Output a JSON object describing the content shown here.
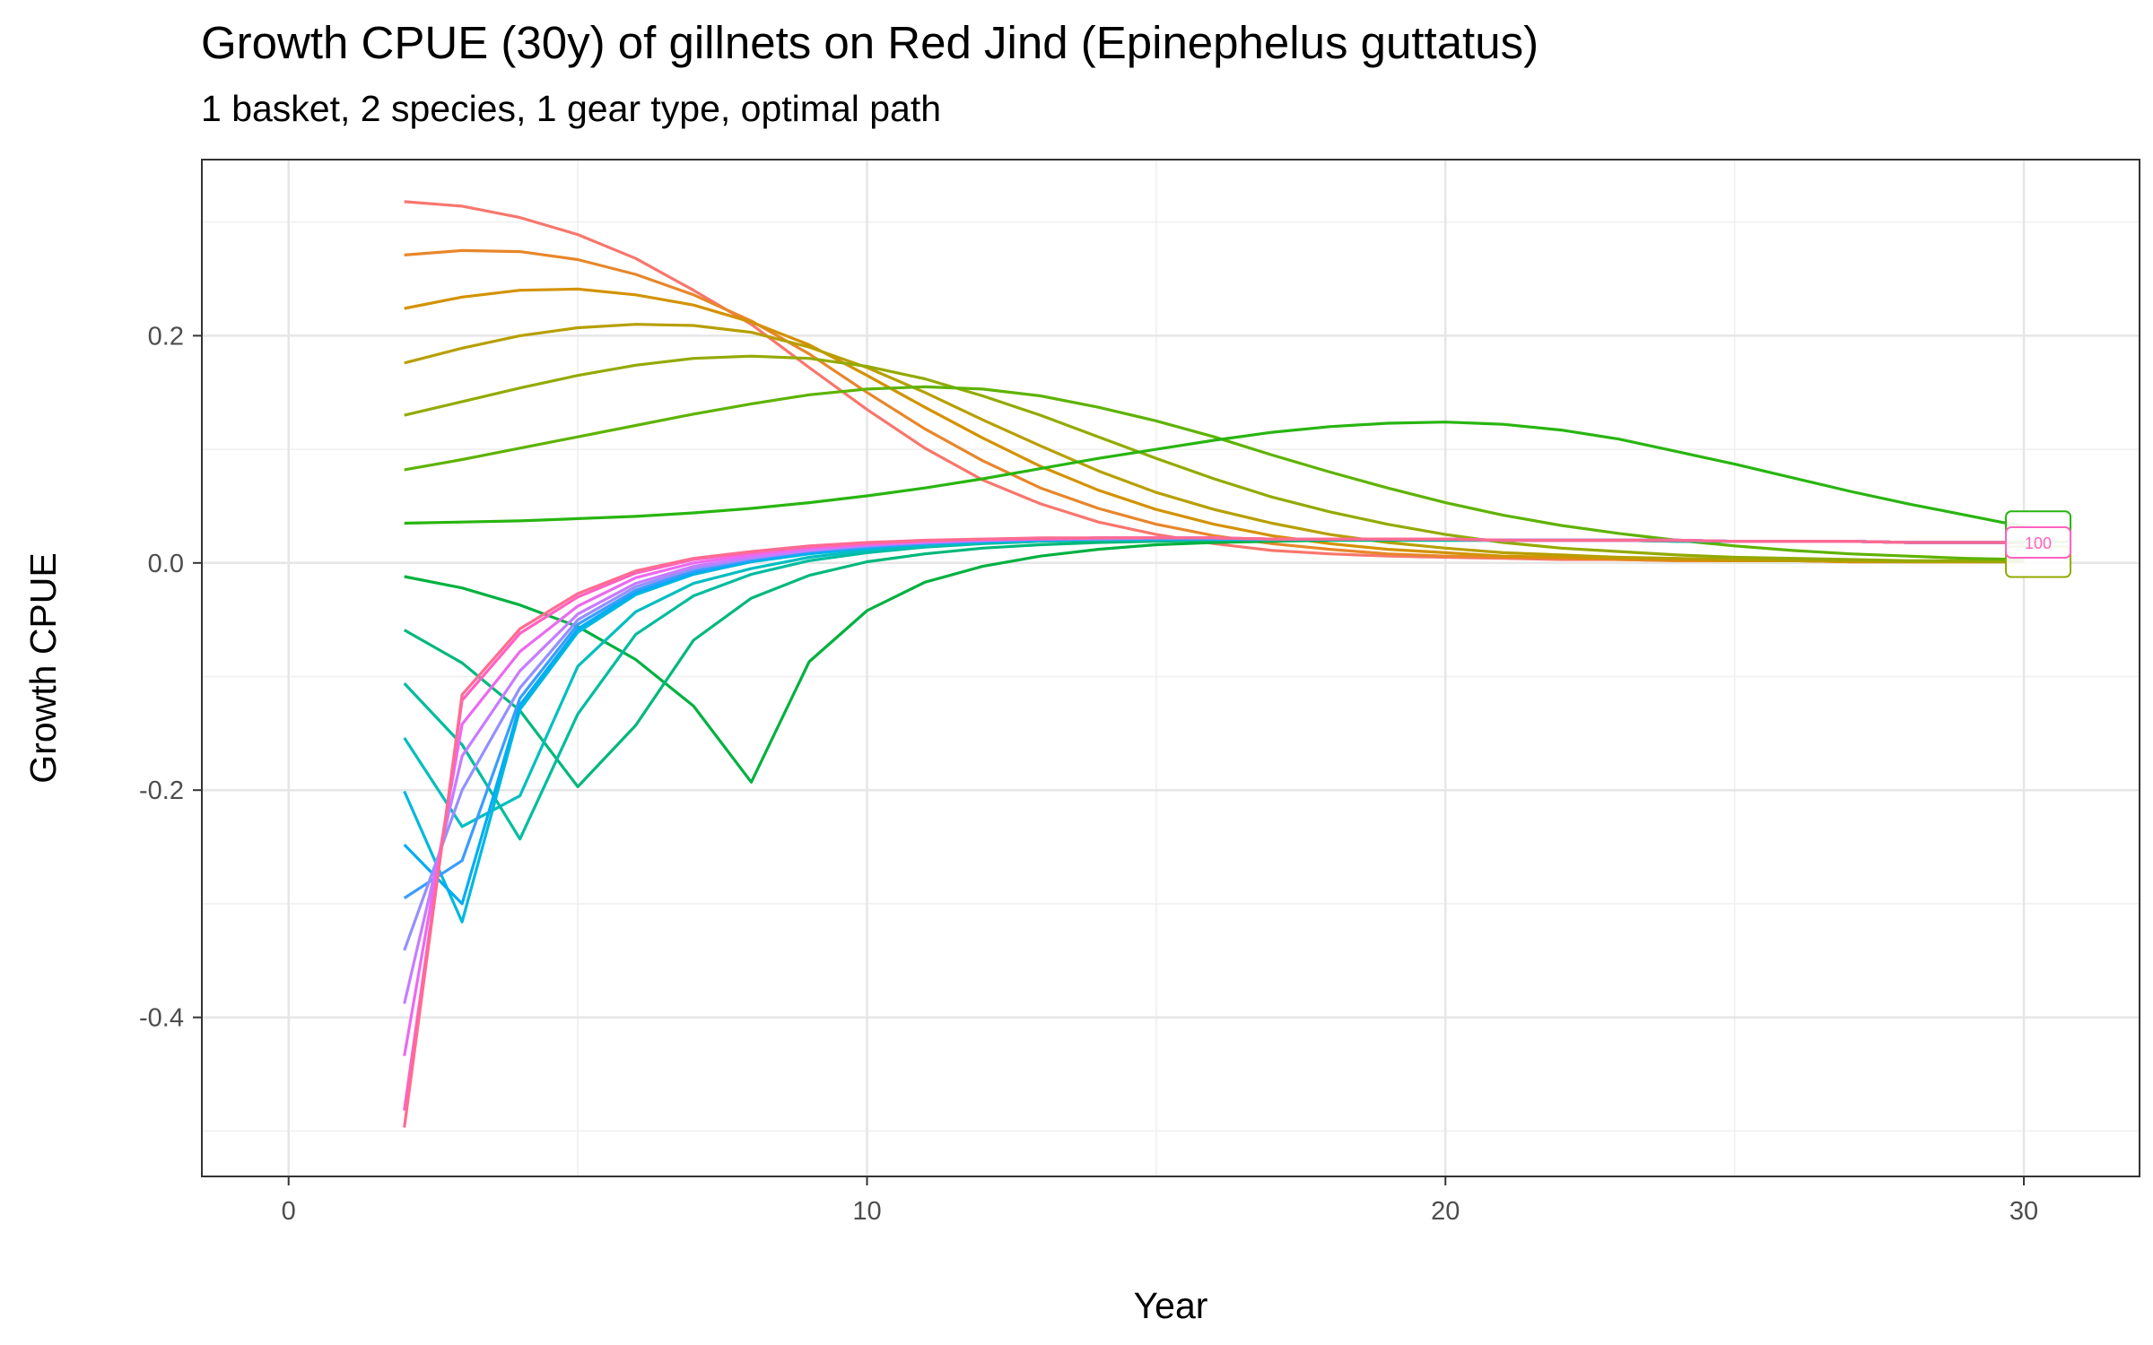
{
  "chart_data": {
    "type": "line",
    "title": "Growth CPUE (30y) of gillnets on Red Jind (Epinephelus guttatus)",
    "subtitle": "1 basket, 2 species, 1 gear type, optimal path",
    "xlabel": "Year",
    "ylabel": "Growth CPUE",
    "xlim": [
      -1.5,
      32
    ],
    "ylim": [
      -0.54,
      0.355
    ],
    "x_ticks": [
      0,
      10,
      20,
      30
    ],
    "x_tick_labels": [
      "0",
      "10",
      "20",
      "30"
    ],
    "y_ticks": [
      -0.4,
      -0.2,
      0.0,
      0.2
    ],
    "y_tick_labels": [
      "-0.4",
      "-0.2",
      "0.0",
      "0.2"
    ],
    "grid": true,
    "legend": "none",
    "x": [
      2,
      3,
      4,
      5,
      6,
      7,
      8,
      9,
      10,
      11,
      12,
      13,
      14,
      15,
      16,
      17,
      18,
      19,
      20,
      21,
      22,
      23,
      24,
      25,
      26,
      27,
      28,
      29,
      30
    ],
    "series": [
      {
        "color": "#F8766D",
        "values": [
          0.318,
          0.314,
          0.304,
          0.289,
          0.268,
          0.24,
          0.21,
          0.172,
          0.135,
          0.101,
          0.073,
          0.052,
          0.036,
          0.025,
          0.017,
          0.011,
          0.008,
          0.006,
          0.005,
          0.004,
          0.003,
          0.003,
          0.002,
          0.002,
          0.002,
          0.001,
          0.001,
          0.001,
          0.001
        ]
      },
      {
        "color": "#E8862A",
        "values": [
          0.271,
          0.275,
          0.274,
          0.267,
          0.254,
          0.236,
          0.213,
          0.184,
          0.15,
          0.118,
          0.09,
          0.066,
          0.048,
          0.034,
          0.024,
          0.017,
          0.012,
          0.008,
          0.006,
          0.005,
          0.004,
          0.003,
          0.002,
          0.002,
          0.002,
          0.001,
          0.001,
          0.001,
          0.001
        ]
      },
      {
        "color": "#D39200",
        "values": [
          0.224,
          0.234,
          0.24,
          0.241,
          0.236,
          0.227,
          0.212,
          0.192,
          0.165,
          0.137,
          0.11,
          0.085,
          0.064,
          0.047,
          0.034,
          0.024,
          0.017,
          0.012,
          0.009,
          0.006,
          0.005,
          0.004,
          0.003,
          0.002,
          0.002,
          0.001,
          0.001,
          0.001,
          0.001
        ]
      },
      {
        "color": "#B79F00",
        "values": [
          0.176,
          0.189,
          0.2,
          0.207,
          0.21,
          0.209,
          0.203,
          0.19,
          0.172,
          0.15,
          0.126,
          0.103,
          0.081,
          0.062,
          0.047,
          0.035,
          0.025,
          0.018,
          0.013,
          0.009,
          0.007,
          0.005,
          0.004,
          0.003,
          0.002,
          0.002,
          0.001,
          0.001,
          0.001
        ]
      },
      {
        "color": "#93AA00",
        "values": [
          0.13,
          0.142,
          0.154,
          0.165,
          0.174,
          0.18,
          0.182,
          0.18,
          0.173,
          0.162,
          0.147,
          0.13,
          0.111,
          0.092,
          0.074,
          0.058,
          0.045,
          0.034,
          0.025,
          0.018,
          0.013,
          0.01,
          0.007,
          0.005,
          0.004,
          0.003,
          0.002,
          0.002,
          0.001
        ]
      },
      {
        "color": "#5EB300",
        "values": [
          0.082,
          0.091,
          0.101,
          0.111,
          0.121,
          0.131,
          0.14,
          0.148,
          0.153,
          0.155,
          0.153,
          0.147,
          0.137,
          0.125,
          0.111,
          0.095,
          0.08,
          0.066,
          0.053,
          0.042,
          0.033,
          0.026,
          0.02,
          0.015,
          0.011,
          0.008,
          0.006,
          0.004,
          0.003
        ]
      },
      {
        "color": "#28B510",
        "values": [
          0.035,
          0.036,
          0.037,
          0.039,
          0.041,
          0.044,
          0.048,
          0.053,
          0.059,
          0.066,
          0.074,
          0.083,
          0.092,
          0.1,
          0.108,
          0.115,
          0.12,
          0.123,
          0.124,
          0.122,
          0.117,
          0.109,
          0.098,
          0.087,
          0.075,
          0.063,
          0.052,
          0.042,
          0.032
        ]
      },
      {
        "color": "#00B140",
        "values": [
          -0.012,
          -0.022,
          -0.037,
          -0.056,
          -0.085,
          -0.126,
          -0.193,
          -0.087,
          -0.042,
          -0.017,
          -0.003,
          0.006,
          0.012,
          0.016,
          0.018,
          0.019,
          0.02,
          0.02,
          0.02,
          0.02,
          0.02,
          0.02,
          0.019,
          0.019,
          0.019,
          0.019,
          0.018,
          0.018,
          0.018
        ]
      },
      {
        "color": "#00B87A",
        "values": [
          -0.059,
          -0.088,
          -0.13,
          -0.197,
          -0.143,
          -0.068,
          -0.031,
          -0.011,
          0.001,
          0.008,
          0.013,
          0.016,
          0.018,
          0.019,
          0.02,
          0.02,
          0.02,
          0.02,
          0.02,
          0.02,
          0.02,
          0.02,
          0.019,
          0.019,
          0.019,
          0.019,
          0.018,
          0.018,
          0.018
        ]
      },
      {
        "color": "#00BC9E",
        "values": [
          -0.106,
          -0.16,
          -0.243,
          -0.133,
          -0.063,
          -0.029,
          -0.01,
          0.002,
          0.009,
          0.014,
          0.017,
          0.019,
          0.02,
          0.02,
          0.021,
          0.021,
          0.021,
          0.021,
          0.02,
          0.02,
          0.02,
          0.02,
          0.019,
          0.019,
          0.019,
          0.019,
          0.018,
          0.018,
          0.018
        ]
      },
      {
        "color": "#00BEC0",
        "values": [
          -0.154,
          -0.232,
          -0.205,
          -0.091,
          -0.043,
          -0.018,
          -0.005,
          0.005,
          0.011,
          0.015,
          0.018,
          0.02,
          0.021,
          0.021,
          0.021,
          0.021,
          0.021,
          0.021,
          0.021,
          0.02,
          0.02,
          0.02,
          0.02,
          0.019,
          0.019,
          0.019,
          0.018,
          0.018,
          0.018
        ]
      },
      {
        "color": "#00B8DE",
        "values": [
          -0.201,
          -0.316,
          -0.129,
          -0.061,
          -0.028,
          -0.01,
          0.001,
          0.008,
          0.013,
          0.017,
          0.019,
          0.02,
          0.021,
          0.021,
          0.021,
          0.021,
          0.021,
          0.021,
          0.021,
          0.02,
          0.02,
          0.02,
          0.02,
          0.019,
          0.019,
          0.019,
          0.018,
          0.018,
          0.018
        ]
      },
      {
        "color": "#00ADF4",
        "values": [
          -0.248,
          -0.3,
          -0.125,
          -0.058,
          -0.026,
          -0.009,
          0.002,
          0.009,
          0.014,
          0.017,
          0.019,
          0.02,
          0.021,
          0.021,
          0.021,
          0.021,
          0.021,
          0.021,
          0.021,
          0.02,
          0.02,
          0.02,
          0.02,
          0.019,
          0.019,
          0.019,
          0.018,
          0.018,
          0.018
        ]
      },
      {
        "color": "#3A9CFF",
        "values": [
          -0.295,
          -0.262,
          -0.119,
          -0.054,
          -0.024,
          -0.007,
          0.003,
          0.01,
          0.014,
          0.017,
          0.019,
          0.021,
          0.021,
          0.021,
          0.021,
          0.021,
          0.021,
          0.021,
          0.021,
          0.02,
          0.02,
          0.02,
          0.02,
          0.019,
          0.019,
          0.019,
          0.018,
          0.018,
          0.018
        ]
      },
      {
        "color": "#9590FF",
        "values": [
          -0.341,
          -0.2,
          -0.11,
          -0.05,
          -0.021,
          -0.005,
          0.004,
          0.011,
          0.015,
          0.018,
          0.02,
          0.021,
          0.021,
          0.022,
          0.022,
          0.021,
          0.021,
          0.021,
          0.021,
          0.02,
          0.02,
          0.02,
          0.02,
          0.019,
          0.019,
          0.019,
          0.018,
          0.018,
          0.018
        ]
      },
      {
        "color": "#C77CFF",
        "values": [
          -0.388,
          -0.17,
          -0.095,
          -0.045,
          -0.018,
          -0.003,
          0.005,
          0.011,
          0.016,
          0.018,
          0.02,
          0.021,
          0.022,
          0.022,
          0.022,
          0.021,
          0.021,
          0.021,
          0.021,
          0.02,
          0.02,
          0.02,
          0.02,
          0.019,
          0.019,
          0.019,
          0.018,
          0.018,
          0.018
        ]
      },
      {
        "color": "#EC69EF",
        "values": [
          -0.434,
          -0.142,
          -0.078,
          -0.038,
          -0.013,
          0.0,
          0.007,
          0.013,
          0.016,
          0.019,
          0.02,
          0.021,
          0.022,
          0.022,
          0.022,
          0.021,
          0.021,
          0.021,
          0.021,
          0.02,
          0.02,
          0.02,
          0.02,
          0.019,
          0.019,
          0.019,
          0.018,
          0.018,
          0.018
        ]
      },
      {
        "color": "#FF61C3",
        "values": [
          -0.482,
          -0.121,
          -0.062,
          -0.03,
          -0.009,
          0.003,
          0.009,
          0.014,
          0.017,
          0.019,
          0.021,
          0.021,
          0.022,
          0.022,
          0.022,
          0.021,
          0.021,
          0.021,
          0.021,
          0.02,
          0.02,
          0.02,
          0.02,
          0.019,
          0.019,
          0.019,
          0.018,
          0.018,
          0.018
        ]
      },
      {
        "color": "#FF6C91",
        "values": [
          -0.497,
          -0.116,
          -0.058,
          -0.027,
          -0.007,
          0.004,
          0.01,
          0.015,
          0.018,
          0.02,
          0.021,
          0.022,
          0.022,
          0.022,
          0.022,
          0.021,
          0.021,
          0.021,
          0.021,
          0.02,
          0.02,
          0.02,
          0.02,
          0.019,
          0.019,
          0.019,
          0.018,
          0.018,
          0.018
        ]
      }
    ],
    "end_labels": [
      {
        "text": "100",
        "color": "#FF61C3",
        "y": 0.018,
        "opacity": 1
      },
      {
        "text": "",
        "color": "#28B510",
        "y": 0.032,
        "opacity": 1
      },
      {
        "text": "",
        "color": "#93AA00",
        "y": 0.001,
        "opacity": 1
      }
    ]
  }
}
